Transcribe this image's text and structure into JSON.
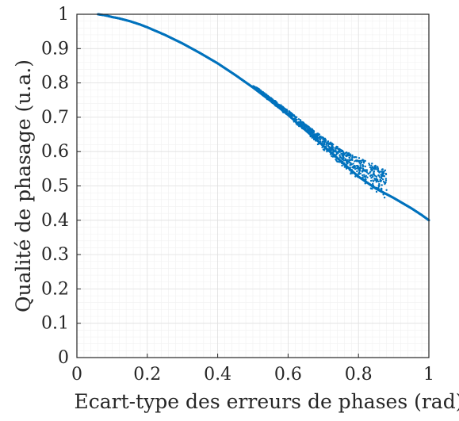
{
  "chart_data": {
    "type": "scatter",
    "title": "",
    "xlabel": "Ecart-type des erreurs de phases (rad)",
    "ylabel": "Qualité de phasage (u.a.)",
    "xlim": [
      0,
      1
    ],
    "ylim": [
      0,
      1
    ],
    "x_ticks": [
      "0",
      "0.2",
      "0.4",
      "0.6",
      "0.8",
      "1"
    ],
    "y_ticks": [
      "0",
      "0.1",
      "0.2",
      "0.3",
      "0.4",
      "0.5",
      "0.6",
      "0.7",
      "0.8",
      "0.9",
      "1"
    ],
    "grid": true,
    "minor_grid": true,
    "legend": "none",
    "series": [
      {
        "color": "#0072BD",
        "x": [
          0.06,
          0.08,
          0.1,
          0.12,
          0.15,
          0.18,
          0.2,
          0.25,
          0.3,
          0.35,
          0.4,
          0.45,
          0.5,
          0.55,
          0.6,
          0.65,
          0.7,
          0.75,
          0.8,
          0.85,
          0.9,
          0.95,
          0.98,
          1.0
        ],
        "y": [
          1.0,
          0.997,
          0.992,
          0.988,
          0.98,
          0.97,
          0.962,
          0.94,
          0.915,
          0.887,
          0.857,
          0.823,
          0.787,
          0.748,
          0.707,
          0.662,
          0.617,
          0.572,
          0.527,
          0.492,
          0.465,
          0.435,
          0.415,
          0.4
        ]
      }
    ],
    "scatter_band": {
      "x": [
        0.5,
        0.55,
        0.6,
        0.65,
        0.7,
        0.75,
        0.8,
        0.85,
        0.88
      ],
      "upper": [
        0.795,
        0.758,
        0.72,
        0.68,
        0.642,
        0.607,
        0.582,
        0.56,
        0.545
      ],
      "lower": [
        0.785,
        0.745,
        0.702,
        0.655,
        0.605,
        0.56,
        0.515,
        0.478,
        0.458
      ]
    }
  }
}
